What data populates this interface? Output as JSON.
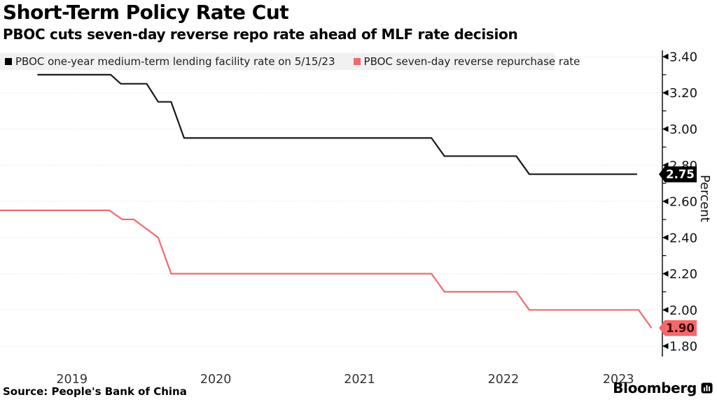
{
  "header": {
    "title": "Short-Term Policy Rate Cut",
    "subtitle": "PBOC cuts seven-day reverse repo rate ahead of MLF rate decision"
  },
  "legend": [
    {
      "label": "PBOC one-year medium-term lending facility rate on 5/15/23",
      "color": "#000000"
    },
    {
      "label": "PBOC seven-day reverse repurchase rate",
      "color": "#f2696c"
    }
  ],
  "footer": {
    "source": "Source: People's Bank of China",
    "brand": "Bloomberg",
    "brand_icon": "bloomberg-terminal-icon"
  },
  "chart_data": {
    "type": "line",
    "title": "Short-Term Policy Rate Cut",
    "subtitle": "PBOC cuts seven-day reverse repo rate ahead of MLF rate decision",
    "xlabel": "",
    "ylabel": "Percent",
    "ylim": [
      1.74,
      3.44
    ],
    "xlim": [
      2019.0,
      2023.6
    ],
    "grid": "horizontal-dotted",
    "legend_position": "top",
    "y_major_ticks": [
      {
        "v": 3.4,
        "label": "3.40"
      },
      {
        "v": 3.2,
        "label": "3.20"
      },
      {
        "v": 3.0,
        "label": "3.00"
      },
      {
        "v": 2.8,
        "label": "2.80"
      },
      {
        "v": 2.6,
        "label": "2.60"
      },
      {
        "v": 2.4,
        "label": "2.40"
      },
      {
        "v": 2.2,
        "label": "2.20"
      },
      {
        "v": 2.0,
        "label": "2.00"
      },
      {
        "v": 1.8,
        "label": "1.80"
      }
    ],
    "y_minor_ticks": [
      3.3,
      3.1,
      2.9,
      2.7,
      2.5,
      2.3,
      2.1,
      1.9
    ],
    "x_ticks": [
      {
        "label": "2019",
        "pos": 2019.5
      },
      {
        "label": "2020",
        "pos": 2020.5
      },
      {
        "label": "2021",
        "pos": 2021.5
      },
      {
        "label": "2022",
        "pos": 2022.5
      },
      {
        "label": "2023",
        "pos": 2023.3
      }
    ],
    "series": [
      {
        "id": "mlf",
        "name": "PBOC one-year medium-term lending facility rate on 5/15/23",
        "color": "#1a1a1a",
        "points": [
          [
            2019.26,
            3.3
          ],
          [
            2019.77,
            3.3
          ],
          [
            2019.84,
            3.25
          ],
          [
            2020.02,
            3.25
          ],
          [
            2020.1,
            3.15
          ],
          [
            2020.19,
            3.15
          ],
          [
            2020.28,
            2.95
          ],
          [
            2022.0,
            2.95
          ],
          [
            2022.09,
            2.85
          ],
          [
            2022.59,
            2.85
          ],
          [
            2022.68,
            2.75
          ],
          [
            2023.43,
            2.75
          ]
        ]
      },
      {
        "id": "repo",
        "name": "PBOC seven-day reverse repurchase rate",
        "color": "#f2696c",
        "points": [
          [
            2019.0,
            2.55
          ],
          [
            2019.76,
            2.55
          ],
          [
            2019.85,
            2.5
          ],
          [
            2019.93,
            2.5
          ],
          [
            2020.1,
            2.4
          ],
          [
            2020.19,
            2.2
          ],
          [
            2022.0,
            2.2
          ],
          [
            2022.09,
            2.1
          ],
          [
            2022.59,
            2.1
          ],
          [
            2022.68,
            2.0
          ],
          [
            2023.44,
            2.0
          ],
          [
            2023.53,
            1.9
          ]
        ]
      }
    ],
    "annotations": [
      {
        "label": "2.75",
        "value": 2.75,
        "bg": "#000000",
        "text_color": "#ffffff"
      },
      {
        "label": "1.90",
        "value": 1.9,
        "bg": "#f2696c",
        "text_color": "#40090b"
      }
    ]
  }
}
